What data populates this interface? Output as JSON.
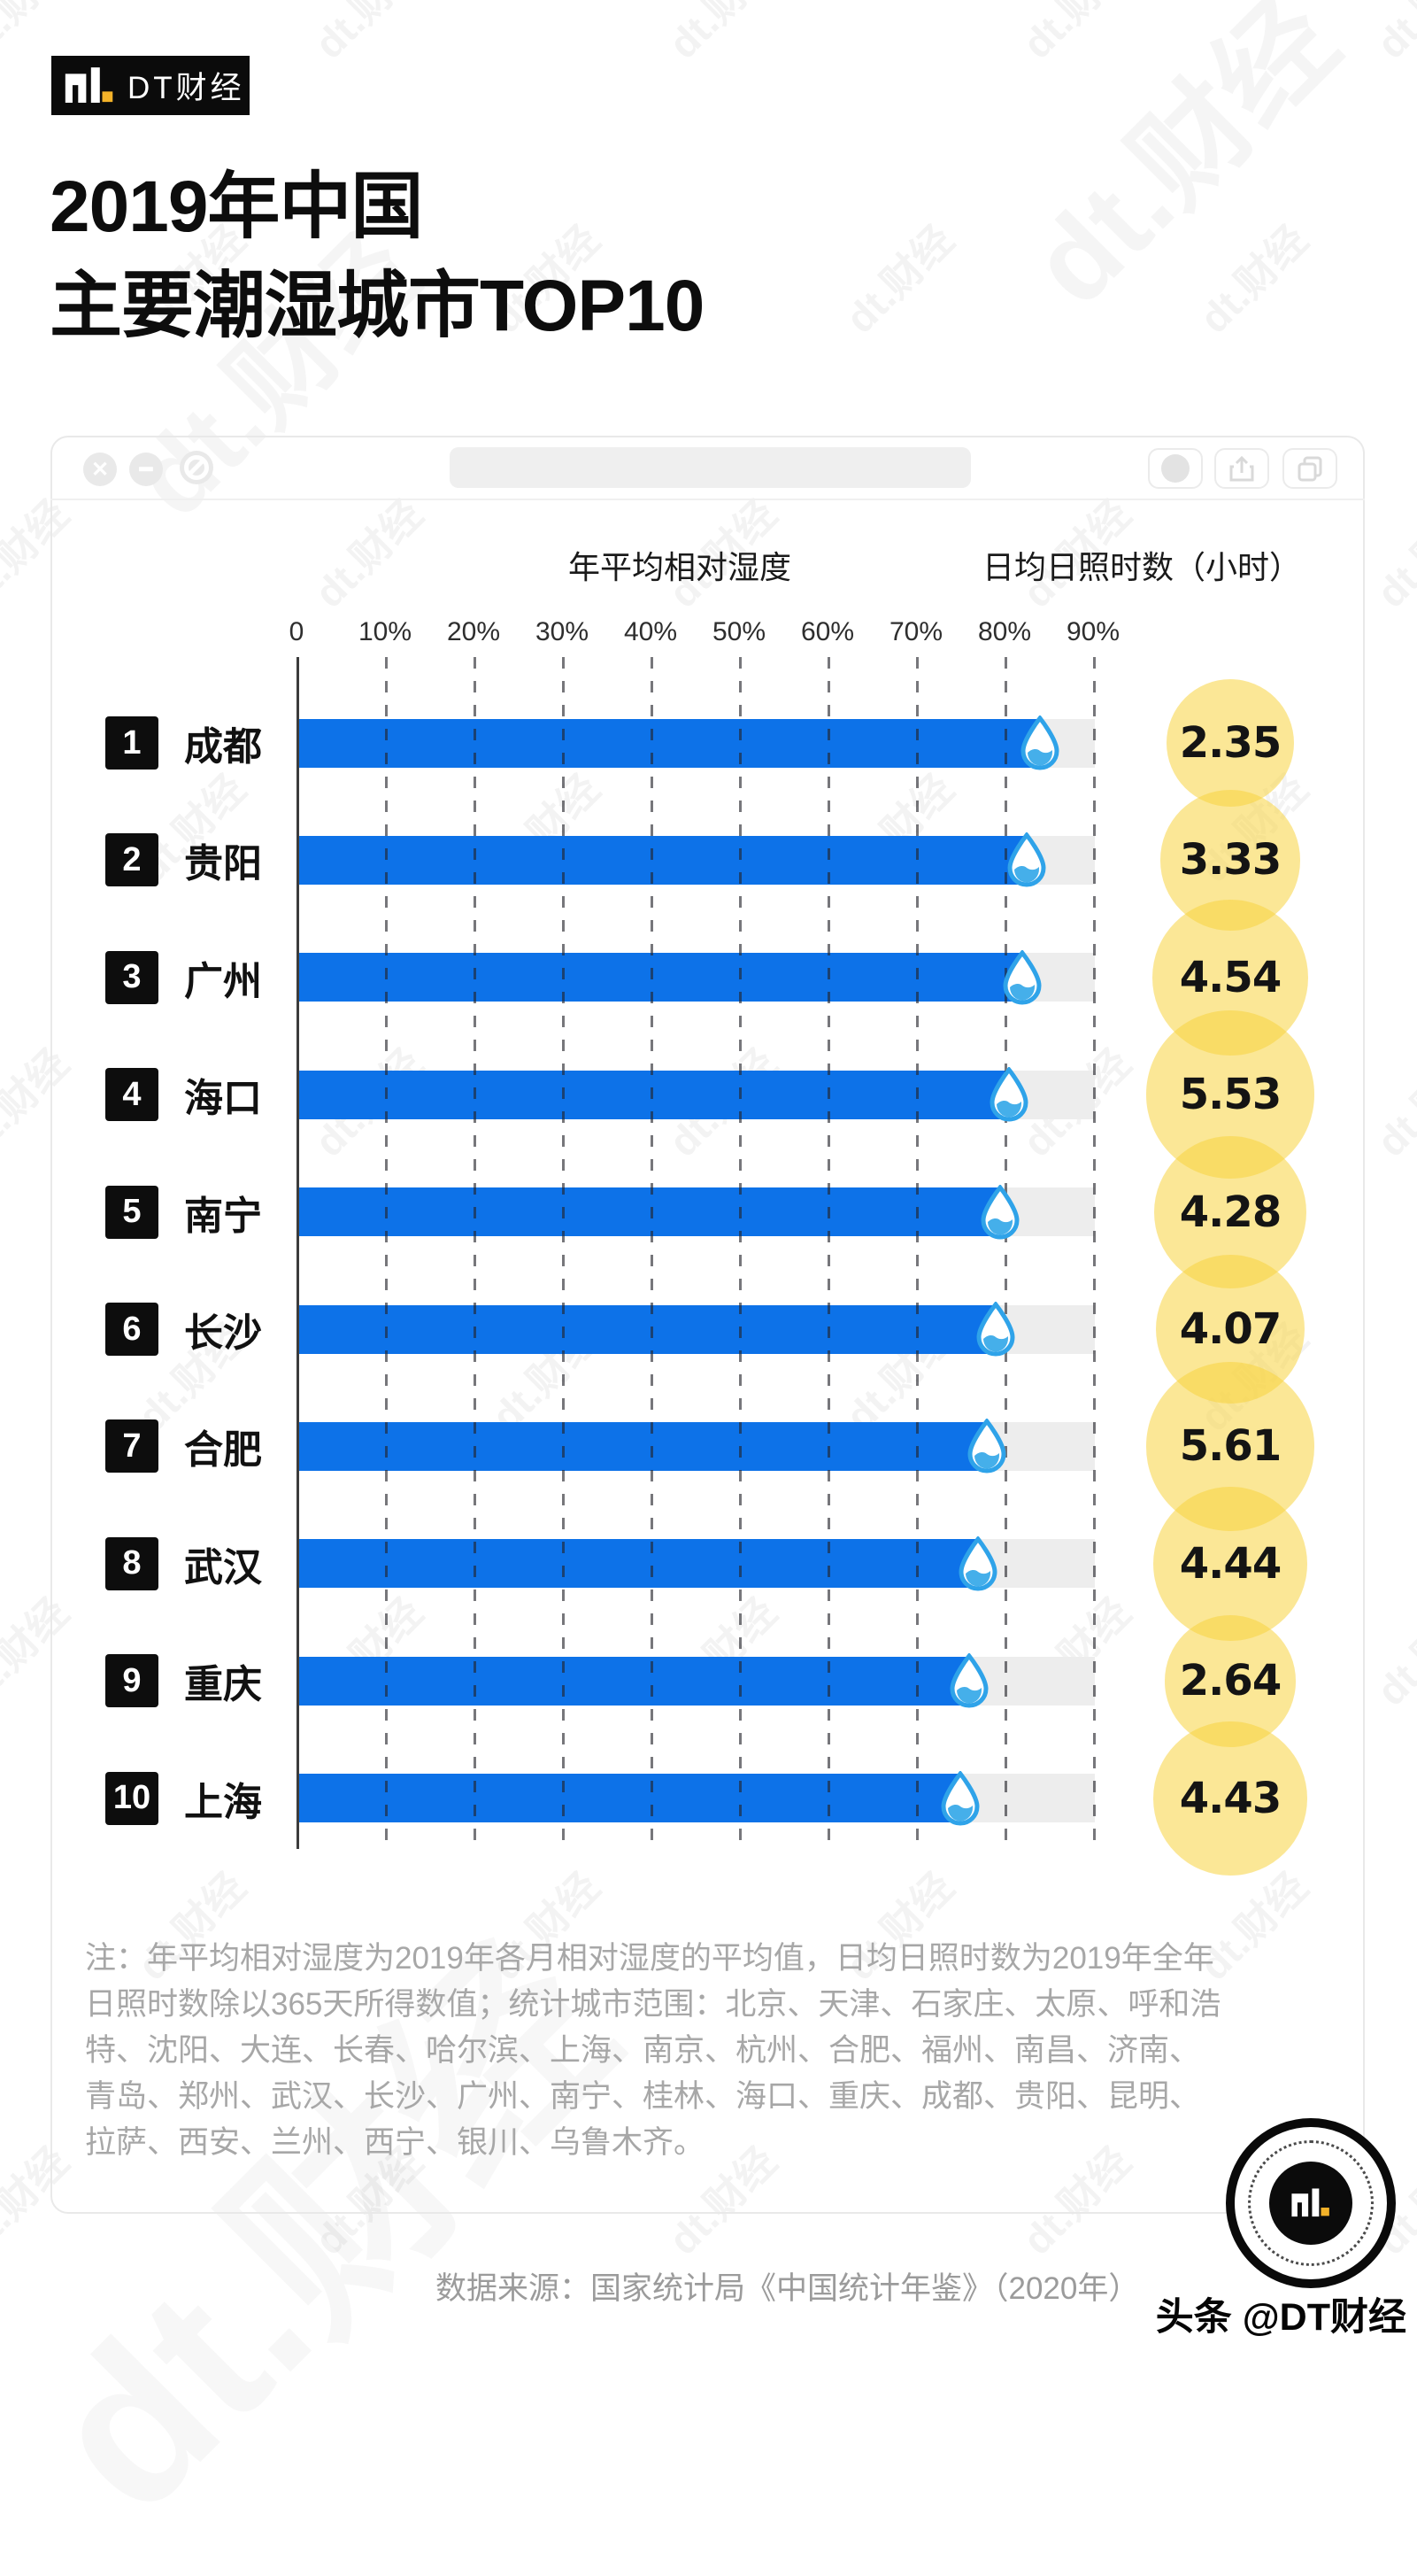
{
  "brand": {
    "logo_text": "dt.",
    "name": "DT财经"
  },
  "title": {
    "line1": "2019年中国",
    "line2": "主要潮湿城市TOP10"
  },
  "window": {
    "controls": [
      "close",
      "minimize",
      "block"
    ],
    "toolbar_icons": [
      "record-dot",
      "share",
      "duplicate"
    ]
  },
  "chart": {
    "left_header": "年平均相对湿度",
    "right_header": "日均日照时数（小时）",
    "ticks": [
      "0",
      "10%",
      "20%",
      "30%",
      "40%",
      "50%",
      "60%",
      "70%",
      "80%",
      "90%"
    ],
    "rows": [
      {
        "rank": "1",
        "city": "成都",
        "humidity_pct": 84,
        "sunshine_hours": "2.35"
      },
      {
        "rank": "2",
        "city": "贵阳",
        "humidity_pct": 82.5,
        "sunshine_hours": "3.33"
      },
      {
        "rank": "3",
        "city": "广州",
        "humidity_pct": 82,
        "sunshine_hours": "4.54"
      },
      {
        "rank": "4",
        "city": "海口",
        "humidity_pct": 80.5,
        "sunshine_hours": "5.53"
      },
      {
        "rank": "5",
        "city": "南宁",
        "humidity_pct": 79.5,
        "sunshine_hours": "4.28"
      },
      {
        "rank": "6",
        "city": "长沙",
        "humidity_pct": 79,
        "sunshine_hours": "4.07"
      },
      {
        "rank": "7",
        "city": "合肥",
        "humidity_pct": 78,
        "sunshine_hours": "5.61"
      },
      {
        "rank": "8",
        "city": "武汉",
        "humidity_pct": 77,
        "sunshine_hours": "4.44"
      },
      {
        "rank": "9",
        "city": "重庆",
        "humidity_pct": 76,
        "sunshine_hours": "2.64"
      },
      {
        "rank": "10",
        "city": "上海",
        "humidity_pct": 75,
        "sunshine_hours": "4.43"
      }
    ]
  },
  "chart_data": {
    "type": "bar",
    "orientation": "horizontal",
    "title": "2019年中国主要潮湿城市TOP10",
    "categories": [
      "成都",
      "贵阳",
      "广州",
      "海口",
      "南宁",
      "长沙",
      "合肥",
      "武汉",
      "重庆",
      "上海"
    ],
    "series": [
      {
        "name": "年平均相对湿度",
        "unit": "%",
        "values": [
          84,
          82.5,
          82,
          80.5,
          79.5,
          79,
          78,
          77,
          76,
          75
        ]
      },
      {
        "name": "日均日照时数（小时）",
        "unit": "小时",
        "values": [
          2.35,
          3.33,
          4.54,
          5.53,
          4.28,
          4.07,
          5.61,
          4.44,
          2.64,
          4.43
        ]
      }
    ],
    "xlim": [
      0,
      90
    ],
    "x_ticks": [
      "0",
      "10%",
      "20%",
      "30%",
      "40%",
      "50%",
      "60%",
      "70%",
      "80%",
      "90%"
    ],
    "grid": "vertical-dashed",
    "legend_position": "none",
    "notes": "第二数据系列以黄色气泡面积表示，气泡内标注数值；湿度条右端带水滴图标"
  },
  "note_lines": [
    "注：年平均相对湿度为2019年各月相对湿度的平均值，日均日照时数为2019年全年",
    "日照时数除以365天所得数值；统计城市范围：北京、天津、石家庄、太原、呼和浩",
    "特、沈阳、大连、长春、哈尔滨、上海、南京、杭州、合肥、福州、南昌、济南、",
    "青岛、郑州、武汉、长沙、广州、南宁、桂林、海口、重庆、成都、贵阳、昆明、",
    "拉萨、西安、兰州、西宁、银川、乌鲁木齐。"
  ],
  "source": "数据来源：国家统计局《中国统计年鉴》（2020年）",
  "footer_watermark": "头条 @DT财经",
  "watermark_text": "dt.财经",
  "colors": {
    "bar": "#0d72e8",
    "drop_outline": "#2fa3e9",
    "drop_water": "#45afea",
    "bubble": "rgba(247,212,63,0.55)",
    "track": "#ededed",
    "badge": "#0d0d0d",
    "accent_yellow": "#f3b229"
  }
}
